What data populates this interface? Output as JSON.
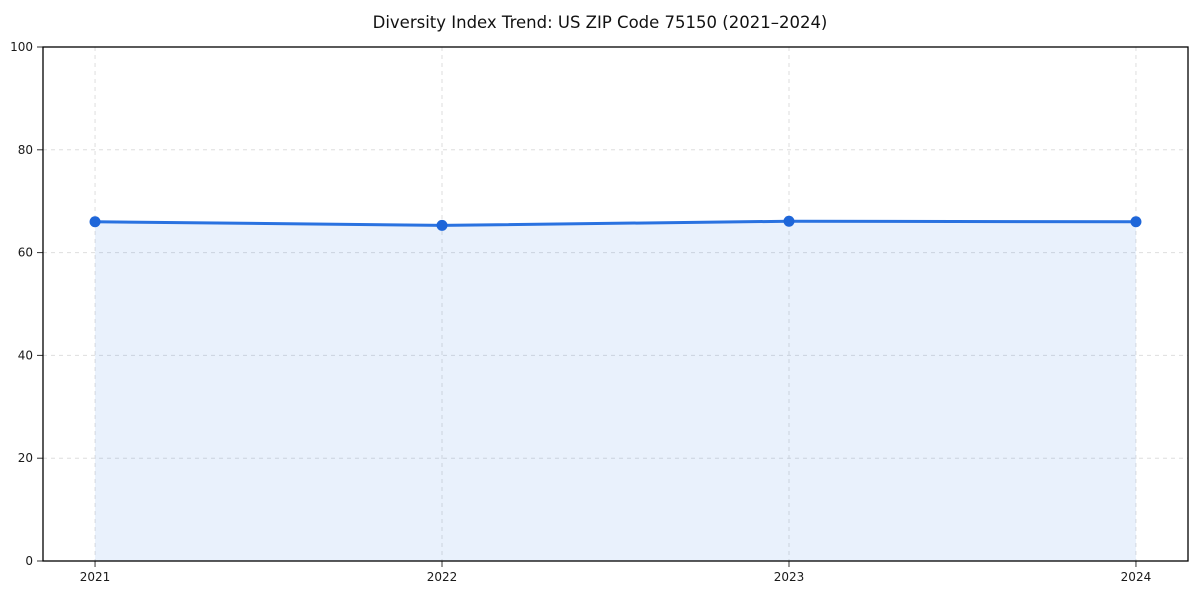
{
  "chart_data": {
    "type": "area",
    "title": "Diversity Index Trend: US ZIP Code 75150 (2021–2024)",
    "categories": [
      "2021",
      "2022",
      "2023",
      "2024"
    ],
    "series": [
      {
        "name": "Diversity Index",
        "values": [
          66.0,
          65.3,
          66.1,
          66.0
        ]
      }
    ],
    "xlabel": "",
    "ylabel": "",
    "ylim": [
      0,
      100
    ],
    "yticks": [
      0,
      20,
      40,
      60,
      80,
      100
    ],
    "grid": true,
    "grid_style": "dashed",
    "legend": "none",
    "colors": {
      "line": "#2a72e0",
      "marker": "#1e66d9",
      "area_fill": "#2a72e0",
      "area_fill_opacity": 0.1,
      "grid": "#dedede",
      "spine": "#000000",
      "tick": "#333333",
      "tick_label": "#1a1a1a",
      "title": "#111111",
      "background": "#ffffff"
    }
  }
}
